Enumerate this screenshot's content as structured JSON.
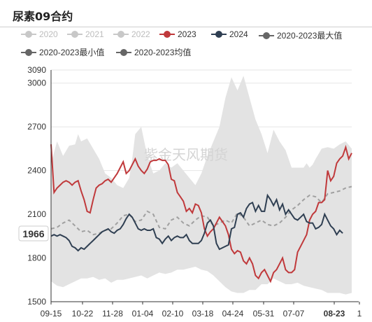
{
  "title": "尿素09合约",
  "chart_data": {
    "type": "line",
    "title": "尿素09合约",
    "watermark": "紫金天风期货",
    "ylim": [
      1500,
      3090
    ],
    "yticks": [
      1500,
      1800,
      2100,
      2400,
      2700,
      3000,
      3090
    ],
    "x_ticks": [
      "09-15",
      "10-22",
      "11-28",
      "01-04",
      "02-10",
      "03-18",
      "04-24",
      "05-31",
      "07-07",
      "08-23",
      "1"
    ],
    "bold_x_tick": "08-23",
    "last_value_label": "1966",
    "legend": [
      {
        "name": "2020",
        "color": "#c8c8c8",
        "active": false
      },
      {
        "name": "2021",
        "color": "#c8c8c8",
        "active": false
      },
      {
        "name": "2022",
        "color": "#c8c8c8",
        "active": false
      },
      {
        "name": "2023",
        "color": "#c0393b",
        "active": true
      },
      {
        "name": "2024",
        "color": "#2f3f52",
        "active": true
      },
      {
        "name": "2020-2023最大值",
        "color": "#666666",
        "active": true
      },
      {
        "name": "2020-2023最小值",
        "color": "#666666",
        "active": true
      },
      {
        "name": "2020-2023均值",
        "color": "#666666",
        "active": true
      }
    ],
    "series": [
      {
        "name": "2020-2023最大值",
        "color": "#e2e2e2",
        "x": [
          0,
          2,
          4,
          6,
          8,
          9,
          10,
          12,
          14,
          16,
          18,
          20,
          22,
          24,
          26,
          27,
          28,
          30,
          32,
          34,
          36,
          38,
          40,
          42,
          44,
          46,
          48,
          50,
          52,
          54,
          56,
          58,
          60,
          62,
          63,
          64,
          66,
          68,
          70,
          72,
          74,
          76,
          78,
          80,
          82,
          84,
          85,
          86,
          87,
          88,
          90,
          92,
          94,
          96,
          98,
          100
        ],
        "values": [
          2450,
          2600,
          2500,
          2570,
          2580,
          2650,
          2600,
          2620,
          2550,
          2480,
          2380,
          2350,
          2300,
          2280,
          2350,
          2480,
          2650,
          2700,
          2500,
          2380,
          2400,
          2450,
          2420,
          2450,
          2400,
          2350,
          2300,
          2380,
          2500,
          2600,
          2700,
          2900,
          3040,
          2950,
          3000,
          3050,
          2900,
          2750,
          2650,
          2520,
          2680,
          2600,
          2540,
          2420,
          2420,
          2420,
          2450,
          2420,
          2440,
          2480,
          2550,
          2560,
          2550,
          2580,
          2600,
          2550
        ]
      },
      {
        "name": "2020-2023最小值",
        "color": "#e2e2e2",
        "x": [
          0,
          2,
          4,
          6,
          8,
          10,
          12,
          14,
          16,
          18,
          20,
          22,
          24,
          26,
          28,
          30,
          32,
          34,
          36,
          38,
          40,
          42,
          44,
          46,
          48,
          50,
          52,
          54,
          56,
          58,
          60,
          62,
          64,
          66,
          68,
          70,
          72,
          74,
          76,
          78,
          80,
          82,
          84,
          86,
          88,
          90,
          92,
          94,
          96,
          98,
          100
        ],
        "values": [
          1640,
          1610,
          1600,
          1620,
          1640,
          1660,
          1660,
          1670,
          1650,
          1660,
          1630,
          1650,
          1650,
          1660,
          1670,
          1680,
          1660,
          1680,
          1700,
          1690,
          1700,
          1720,
          1720,
          1730,
          1740,
          1720,
          1710,
          1680,
          1640,
          1600,
          1570,
          1560,
          1560,
          1580,
          1580,
          1620,
          1620,
          1660,
          1640,
          1620,
          1620,
          1630,
          1610,
          1600,
          1590,
          1580,
          1560,
          1560,
          1560,
          1550,
          1560
        ]
      },
      {
        "name": "2020-2023均值",
        "color": "#a0a0a0",
        "x": [
          0,
          2,
          4,
          6,
          8,
          10,
          12,
          14,
          16,
          18,
          20,
          22,
          24,
          26,
          28,
          30,
          32,
          34,
          36,
          38,
          40,
          42,
          44,
          46,
          48,
          50,
          52,
          54,
          56,
          58,
          60,
          62,
          64,
          66,
          68,
          70,
          72,
          74,
          76,
          78,
          80,
          82,
          84,
          86,
          88,
          90,
          92,
          94,
          96,
          98,
          100
        ],
        "values": [
          2000,
          2010,
          2040,
          2060,
          2020,
          1980,
          1990,
          1960,
          1970,
          1990,
          2000,
          2040,
          2090,
          2100,
          2050,
          2060,
          2120,
          2100,
          2010,
          2000,
          2060,
          2080,
          2040,
          2020,
          2060,
          2090,
          2080,
          2020,
          2040,
          2060,
          2040,
          2110,
          2080,
          2020,
          2040,
          2060,
          2030,
          2020,
          2040,
          2080,
          2130,
          2160,
          2200,
          2230,
          2220,
          2180,
          2240,
          2250,
          2260,
          2280,
          2290
        ]
      },
      {
        "name": "2023",
        "color": "#c0393b",
        "x": [
          0,
          1,
          2,
          3,
          4,
          5,
          6,
          7,
          8,
          9,
          10,
          11,
          12,
          13,
          14,
          15,
          16,
          17,
          18,
          19,
          20,
          21,
          22,
          23,
          24,
          25,
          26,
          27,
          28,
          29,
          30,
          31,
          32,
          33,
          34,
          35,
          36,
          37,
          38,
          39,
          40,
          41,
          42,
          43,
          44,
          45,
          46,
          47,
          48,
          49,
          50,
          51,
          52,
          53,
          54,
          55,
          56,
          57,
          58,
          59,
          60,
          61,
          62,
          63,
          64,
          65,
          66,
          67,
          68,
          69,
          70,
          71,
          72,
          73,
          74,
          75,
          76,
          77,
          78,
          79,
          80,
          81,
          82,
          83,
          84,
          85,
          86,
          87,
          88,
          89,
          90,
          91,
          92,
          93,
          94,
          95,
          96,
          97,
          98,
          99,
          100
        ],
        "values": [
          2580,
          2250,
          2280,
          2300,
          2320,
          2330,
          2320,
          2300,
          2320,
          2330,
          2260,
          2200,
          2120,
          2110,
          2200,
          2280,
          2300,
          2310,
          2330,
          2340,
          2320,
          2350,
          2380,
          2420,
          2460,
          2380,
          2400,
          2440,
          2480,
          2430,
          2400,
          2380,
          2410,
          2460,
          2470,
          2470,
          2480,
          2470,
          2470,
          2440,
          2340,
          2330,
          2250,
          2220,
          2190,
          2120,
          2140,
          2110,
          2170,
          2160,
          2110,
          2000,
          1950,
          1980,
          2000,
          2040,
          2080,
          2050,
          2020,
          1960,
          1860,
          1830,
          1850,
          1840,
          1780,
          1760,
          1800,
          1760,
          1680,
          1660,
          1700,
          1720,
          1680,
          1640,
          1700,
          1720,
          1760,
          1800,
          1720,
          1700,
          1700,
          1720,
          1840,
          1880,
          1920,
          1960,
          2060,
          2100,
          2120,
          2180,
          2180,
          2200,
          2400,
          2330,
          2360,
          2450,
          2480,
          2500,
          2560,
          2480,
          2520
        ]
      },
      {
        "name": "2024",
        "color": "#2f3f52",
        "x": [
          0,
          1,
          2,
          3,
          4,
          5,
          6,
          7,
          8,
          9,
          10,
          11,
          12,
          13,
          14,
          15,
          16,
          17,
          18,
          19,
          20,
          21,
          22,
          23,
          24,
          25,
          26,
          27,
          28,
          29,
          30,
          31,
          32,
          33,
          34,
          35,
          36,
          37,
          38,
          39,
          40,
          41,
          42,
          43,
          44,
          45,
          46,
          47,
          48,
          49,
          50,
          51,
          52,
          53,
          54,
          55,
          56,
          57,
          58,
          59,
          60,
          61,
          62,
          63,
          64,
          65,
          66,
          67,
          68,
          69,
          70,
          71,
          72,
          73,
          74,
          75,
          76,
          77,
          78,
          79,
          80,
          81,
          82,
          83,
          84,
          85,
          86,
          87,
          88,
          89,
          90,
          91,
          92,
          93,
          94,
          95,
          96,
          97
        ],
        "values": [
          1950,
          1960,
          1950,
          1960,
          1950,
          1940,
          1920,
          1880,
          1870,
          1850,
          1870,
          1860,
          1880,
          1900,
          1920,
          1940,
          1960,
          1980,
          1990,
          2000,
          1980,
          1970,
          1990,
          2000,
          2030,
          2070,
          2100,
          2080,
          2040,
          2000,
          1990,
          2000,
          1990,
          1990,
          2000,
          1940,
          1930,
          1900,
          1930,
          1950,
          1920,
          1940,
          1950,
          1940,
          1940,
          1960,
          1920,
          1900,
          1900,
          1900,
          1920,
          1970,
          2040,
          2060,
          2020,
          1900,
          1860,
          1870,
          1880,
          1890,
          2000,
          2010,
          2100,
          2110,
          2080,
          2140,
          2170,
          2180,
          2120,
          2160,
          2120,
          2120,
          2230,
          2200,
          2160,
          2200,
          2130,
          2170,
          2100,
          2130,
          2100,
          2070,
          2060,
          2080,
          2100,
          2050,
          2040,
          2040,
          2000,
          2010,
          2030,
          2100,
          2060,
          2020,
          2000,
          1960,
          1990,
          1970
        ]
      }
    ]
  }
}
